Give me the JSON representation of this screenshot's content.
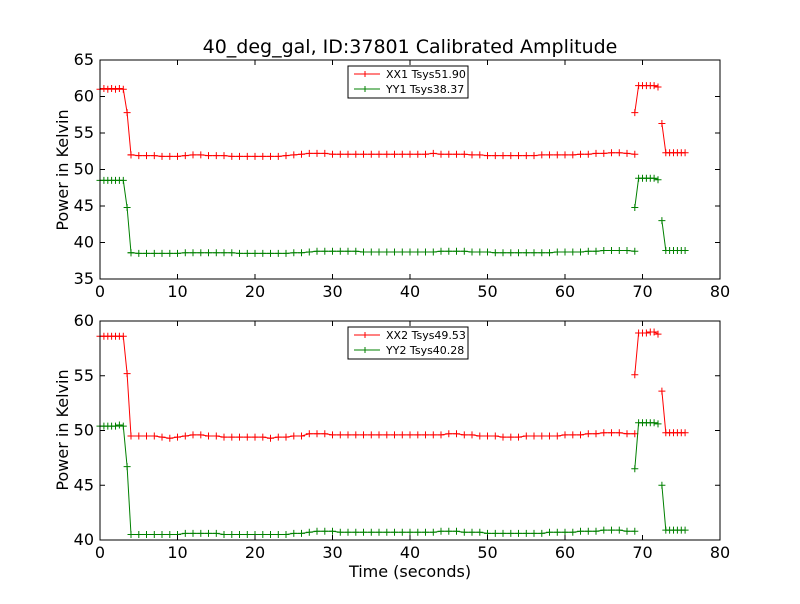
{
  "chart_data": [
    {
      "type": "line",
      "title": "40_deg_gal, ID:37801 Calibrated Amplitude",
      "xlabel": "",
      "ylabel": "Power in Kelvin",
      "xlim": [
        0,
        80
      ],
      "ylim": [
        35,
        65
      ],
      "xticks": [
        0,
        10,
        20,
        30,
        40,
        50,
        60,
        70,
        80
      ],
      "yticks": [
        35,
        40,
        45,
        50,
        55,
        60,
        65
      ],
      "grid": false,
      "legend_position": "top-center",
      "marker": "+",
      "series": [
        {
          "name": "XX1 Tsys51.90",
          "color": "#ff0000",
          "segments": [
            {
              "x": [
                0,
                0.5,
                1,
                1.5,
                2,
                2.5,
                3,
                3.5,
                4
              ],
              "y": [
                61.0,
                61.1,
                61.0,
                61.1,
                61.0,
                61.1,
                61.0,
                57.8,
                52.0
              ]
            },
            {
              "x": [
                4,
                5,
                6,
                7,
                8,
                9,
                10,
                11,
                12,
                13,
                14,
                15,
                16,
                17,
                18,
                19,
                20,
                21,
                22,
                23,
                24,
                25,
                26,
                27,
                28,
                29,
                30,
                31,
                32,
                33,
                34,
                35,
                36,
                37,
                38,
                39,
                40,
                41,
                42,
                43,
                44,
                45,
                46,
                47,
                48,
                49,
                50,
                51,
                52,
                53,
                54,
                55,
                56,
                57,
                58,
                59,
                60,
                61,
                62,
                63,
                64,
                65,
                66,
                67,
                68,
                69
              ],
              "y": [
                52.0,
                51.9,
                51.9,
                51.9,
                51.8,
                51.8,
                51.8,
                51.9,
                52.0,
                52.0,
                51.9,
                51.9,
                51.9,
                51.8,
                51.8,
                51.8,
                51.8,
                51.8,
                51.8,
                51.8,
                51.9,
                52.0,
                52.1,
                52.2,
                52.2,
                52.2,
                52.1,
                52.1,
                52.1,
                52.1,
                52.1,
                52.1,
                52.1,
                52.1,
                52.1,
                52.1,
                52.1,
                52.1,
                52.1,
                52.2,
                52.1,
                52.1,
                52.1,
                52.1,
                52.0,
                52.0,
                51.9,
                51.9,
                51.9,
                51.9,
                51.9,
                51.9,
                51.9,
                52.0,
                52.0,
                52.0,
                52.0,
                52.0,
                52.1,
                52.1,
                52.2,
                52.2,
                52.3,
                52.3,
                52.2,
                52.1
              ]
            },
            {
              "x": [
                69,
                69.5,
                70,
                70.5,
                71,
                71.5,
                72
              ],
              "y": [
                57.8,
                61.5,
                61.5,
                61.5,
                61.5,
                61.5,
                61.3
              ]
            },
            {
              "x": [
                72.5,
                73,
                73.5,
                74,
                74.5,
                75,
                75.5
              ],
              "y": [
                56.3,
                52.3,
                52.3,
                52.3,
                52.3,
                52.3,
                52.3
              ]
            }
          ]
        },
        {
          "name": "YY1 Tsys38.37",
          "color": "#008000",
          "segments": [
            {
              "x": [
                0,
                0.5,
                1,
                1.5,
                2,
                2.5,
                3,
                3.5,
                4
              ],
              "y": [
                48.5,
                48.5,
                48.5,
                48.5,
                48.5,
                48.5,
                48.5,
                44.8,
                38.6
              ]
            },
            {
              "x": [
                4,
                5,
                6,
                7,
                8,
                9,
                10,
                11,
                12,
                13,
                14,
                15,
                16,
                17,
                18,
                19,
                20,
                21,
                22,
                23,
                24,
                25,
                26,
                27,
                28,
                29,
                30,
                31,
                32,
                33,
                34,
                35,
                36,
                37,
                38,
                39,
                40,
                41,
                42,
                43,
                44,
                45,
                46,
                47,
                48,
                49,
                50,
                51,
                52,
                53,
                54,
                55,
                56,
                57,
                58,
                59,
                60,
                61,
                62,
                63,
                64,
                65,
                66,
                67,
                68,
                69
              ],
              "y": [
                38.6,
                38.5,
                38.5,
                38.5,
                38.5,
                38.5,
                38.5,
                38.6,
                38.6,
                38.6,
                38.6,
                38.6,
                38.6,
                38.6,
                38.5,
                38.5,
                38.5,
                38.5,
                38.5,
                38.5,
                38.5,
                38.6,
                38.6,
                38.7,
                38.8,
                38.8,
                38.8,
                38.8,
                38.8,
                38.8,
                38.7,
                38.7,
                38.7,
                38.7,
                38.7,
                38.7,
                38.7,
                38.7,
                38.7,
                38.7,
                38.8,
                38.8,
                38.8,
                38.8,
                38.7,
                38.7,
                38.7,
                38.6,
                38.6,
                38.6,
                38.6,
                38.6,
                38.6,
                38.6,
                38.6,
                38.7,
                38.7,
                38.7,
                38.7,
                38.8,
                38.8,
                38.9,
                38.9,
                38.9,
                38.9,
                38.8
              ]
            },
            {
              "x": [
                69,
                69.5,
                70,
                70.5,
                71,
                71.5,
                72
              ],
              "y": [
                44.8,
                48.8,
                48.8,
                48.8,
                48.8,
                48.8,
                48.6
              ]
            },
            {
              "x": [
                72.5,
                73,
                73.5,
                74,
                74.5,
                75,
                75.5
              ],
              "y": [
                43.0,
                38.9,
                38.9,
                38.9,
                38.9,
                38.9,
                38.9
              ]
            }
          ]
        }
      ]
    },
    {
      "type": "line",
      "title": "",
      "xlabel": "Time (seconds)",
      "ylabel": "Power in Kelvin",
      "xlim": [
        0,
        80
      ],
      "ylim": [
        40,
        60
      ],
      "xticks": [
        0,
        10,
        20,
        30,
        40,
        50,
        60,
        70,
        80
      ],
      "yticks": [
        40,
        45,
        50,
        55,
        60
      ],
      "grid": false,
      "legend_position": "top-center",
      "marker": "+",
      "series": [
        {
          "name": "XX2 Tsys49.53",
          "color": "#ff0000",
          "segments": [
            {
              "x": [
                0,
                0.5,
                1,
                1.5,
                2,
                2.5,
                3,
                3.5,
                4
              ],
              "y": [
                58.6,
                58.6,
                58.6,
                58.6,
                58.6,
                58.6,
                58.6,
                55.2,
                49.5
              ]
            },
            {
              "x": [
                4,
                5,
                6,
                7,
                8,
                9,
                10,
                11,
                12,
                13,
                14,
                15,
                16,
                17,
                18,
                19,
                20,
                21,
                22,
                23,
                24,
                25,
                26,
                27,
                28,
                29,
                30,
                31,
                32,
                33,
                34,
                35,
                36,
                37,
                38,
                39,
                40,
                41,
                42,
                43,
                44,
                45,
                46,
                47,
                48,
                49,
                50,
                51,
                52,
                53,
                54,
                55,
                56,
                57,
                58,
                59,
                60,
                61,
                62,
                63,
                64,
                65,
                66,
                67,
                68,
                69
              ],
              "y": [
                49.5,
                49.5,
                49.5,
                49.5,
                49.4,
                49.3,
                49.4,
                49.5,
                49.6,
                49.6,
                49.5,
                49.5,
                49.4,
                49.4,
                49.4,
                49.4,
                49.4,
                49.4,
                49.3,
                49.4,
                49.4,
                49.5,
                49.5,
                49.7,
                49.7,
                49.7,
                49.6,
                49.6,
                49.6,
                49.6,
                49.6,
                49.6,
                49.6,
                49.6,
                49.6,
                49.6,
                49.6,
                49.6,
                49.6,
                49.6,
                49.6,
                49.7,
                49.7,
                49.6,
                49.6,
                49.5,
                49.5,
                49.5,
                49.4,
                49.4,
                49.4,
                49.5,
                49.5,
                49.5,
                49.5,
                49.5,
                49.6,
                49.6,
                49.6,
                49.7,
                49.7,
                49.8,
                49.8,
                49.8,
                49.7,
                49.7
              ]
            },
            {
              "x": [
                69,
                69.5,
                70,
                70.5,
                71,
                71.5,
                72
              ],
              "y": [
                55.1,
                58.9,
                58.9,
                58.9,
                59.0,
                59.0,
                58.8
              ]
            },
            {
              "x": [
                72.5,
                73,
                73.5,
                74,
                74.5,
                75,
                75.5
              ],
              "y": [
                53.6,
                49.8,
                49.8,
                49.8,
                49.8,
                49.8,
                49.8
              ]
            }
          ]
        },
        {
          "name": "YY2 Tsys40.28",
          "color": "#008000",
          "segments": [
            {
              "x": [
                0,
                0.5,
                1,
                1.5,
                2,
                2.5,
                3,
                3.5,
                4
              ],
              "y": [
                50.4,
                50.4,
                50.4,
                50.4,
                50.4,
                50.5,
                50.4,
                46.7,
                40.5
              ]
            },
            {
              "x": [
                4,
                5,
                6,
                7,
                8,
                9,
                10,
                11,
                12,
                13,
                14,
                15,
                16,
                17,
                18,
                19,
                20,
                21,
                22,
                23,
                24,
                25,
                26,
                27,
                28,
                29,
                30,
                31,
                32,
                33,
                34,
                35,
                36,
                37,
                38,
                39,
                40,
                41,
                42,
                43,
                44,
                45,
                46,
                47,
                48,
                49,
                50,
                51,
                52,
                53,
                54,
                55,
                56,
                57,
                58,
                59,
                60,
                61,
                62,
                63,
                64,
                65,
                66,
                67,
                68,
                69
              ],
              "y": [
                40.5,
                40.5,
                40.5,
                40.5,
                40.5,
                40.5,
                40.5,
                40.6,
                40.6,
                40.6,
                40.6,
                40.6,
                40.5,
                40.5,
                40.5,
                40.5,
                40.5,
                40.5,
                40.5,
                40.5,
                40.5,
                40.6,
                40.6,
                40.7,
                40.8,
                40.8,
                40.8,
                40.7,
                40.7,
                40.7,
                40.7,
                40.7,
                40.7,
                40.7,
                40.7,
                40.7,
                40.7,
                40.7,
                40.7,
                40.7,
                40.8,
                40.8,
                40.8,
                40.7,
                40.7,
                40.7,
                40.6,
                40.6,
                40.6,
                40.6,
                40.6,
                40.6,
                40.6,
                40.6,
                40.7,
                40.7,
                40.7,
                40.7,
                40.8,
                40.8,
                40.8,
                40.9,
                40.9,
                40.9,
                40.8,
                40.8
              ]
            },
            {
              "x": [
                69,
                69.5,
                70,
                70.5,
                71,
                71.5,
                72
              ],
              "y": [
                46.5,
                50.7,
                50.7,
                50.7,
                50.7,
                50.7,
                50.6
              ]
            },
            {
              "x": [
                72.5,
                73,
                73.5,
                74,
                74.5,
                75,
                75.5
              ],
              "y": [
                45.0,
                40.9,
                40.9,
                40.9,
                40.9,
                40.9,
                40.9
              ]
            }
          ]
        }
      ]
    }
  ]
}
